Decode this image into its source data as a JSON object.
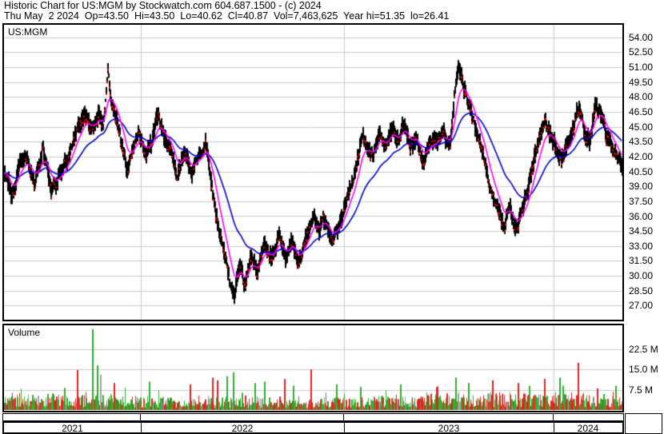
{
  "header": {
    "line1": "Historic Chart for US:MGM by Stockwatch.com 604.687.1500 - (c) 2024",
    "line2": "Thu May  2 2024  Op=43.50  Hi=43.50  Lo=40.62  Cl=40.87  Vol=7,463,625  Year hi=51.35  lo=26.41"
  },
  "price_panel": {
    "symbol_label": "US:MGM"
  },
  "volume_panel": {
    "label": "Volume"
  },
  "price_axis": {
    "labels": [
      "54.00",
      "52.50",
      "51.00",
      "49.50",
      "48.00",
      "46.50",
      "45.00",
      "43.50",
      "42.00",
      "40.50",
      "39.00",
      "37.50",
      "36.00",
      "34.50",
      "33.00",
      "31.50",
      "30.00",
      "28.50",
      "27.00"
    ]
  },
  "volume_axis": {
    "labels": [
      "22.5 M",
      "15.0 M",
      "7.5 M"
    ]
  },
  "time_axis": {
    "years": [
      {
        "label": "2021",
        "start": 0.0,
        "end": 0.2212
      },
      {
        "label": "2022",
        "start": 0.2212,
        "end": 0.5498
      },
      {
        "label": "2023",
        "start": 0.5498,
        "end": 0.8888
      },
      {
        "label": "2024",
        "start": 0.8888,
        "end": 1.0
      }
    ]
  },
  "colors": {
    "text": "#000000",
    "grid": "#c9c9c9",
    "border": "#000000",
    "candle": "#000000",
    "candle_tick": "#ff0000",
    "ma_fast": "#ff00ff",
    "ma_slow": "#0000cc",
    "vol_up": "#2fae2f",
    "vol_down": "#e32222",
    "vol_neutral": "#a0a0a0"
  },
  "chart_data": {
    "type": "candlestick+volume",
    "title": "Historic Chart for US:MGM",
    "symbol": "US:MGM",
    "price_gridlines": [
      54.0,
      52.5,
      51.0,
      49.5,
      48.0,
      46.5,
      45.0,
      43.5,
      42.0,
      40.5,
      39.0,
      37.5,
      36.0,
      34.5,
      33.0,
      31.5,
      30.0,
      28.5,
      27.0
    ],
    "price_ylim": [
      25.9,
      55.3
    ],
    "volume_gridlines_M": [
      22.5,
      15.0,
      7.5
    ],
    "volume_ylim_M": [
      0,
      31.4
    ],
    "last_bar": {
      "date": "Thu May 2 2024",
      "open": 43.5,
      "high": 43.5,
      "low": 40.62,
      "close": 40.87,
      "volume": 7463625
    },
    "year_hi": 51.35,
    "year_lo": 26.41,
    "overlays": [
      {
        "name": "ma-fast",
        "color": "#ff00ff"
      },
      {
        "name": "ma-slow",
        "color": "#0000cc"
      }
    ],
    "price_anchors": [
      [
        0.0,
        40.6
      ],
      [
        0.012,
        37.9
      ],
      [
        0.023,
        41.0
      ],
      [
        0.036,
        42.0
      ],
      [
        0.049,
        39.2
      ],
      [
        0.062,
        43.0
      ],
      [
        0.075,
        38.6
      ],
      [
        0.093,
        40.5
      ],
      [
        0.114,
        44.0
      ],
      [
        0.129,
        46.4
      ],
      [
        0.14,
        44.6
      ],
      [
        0.152,
        46.5
      ],
      [
        0.16,
        44.8
      ],
      [
        0.167,
        50.8
      ],
      [
        0.173,
        47.6
      ],
      [
        0.184,
        45.0
      ],
      [
        0.193,
        42.6
      ],
      [
        0.199,
        40.4
      ],
      [
        0.208,
        43.0
      ],
      [
        0.217,
        44.5
      ],
      [
        0.227,
        42.0
      ],
      [
        0.24,
        44.0
      ],
      [
        0.248,
        46.2
      ],
      [
        0.258,
        44.0
      ],
      [
        0.269,
        42.5
      ],
      [
        0.279,
        40.1
      ],
      [
        0.292,
        42.5
      ],
      [
        0.302,
        40.5
      ],
      [
        0.315,
        42.0
      ],
      [
        0.326,
        43.5
      ],
      [
        0.333,
        40.0
      ],
      [
        0.344,
        35.6
      ],
      [
        0.354,
        32.5
      ],
      [
        0.364,
        29.6
      ],
      [
        0.372,
        27.8
      ],
      [
        0.38,
        31.0
      ],
      [
        0.389,
        29.1
      ],
      [
        0.398,
        32.0
      ],
      [
        0.408,
        30.5
      ],
      [
        0.419,
        33.0
      ],
      [
        0.432,
        32.0
      ],
      [
        0.444,
        34.0
      ],
      [
        0.455,
        31.8
      ],
      [
        0.465,
        33.5
      ],
      [
        0.475,
        31.3
      ],
      [
        0.488,
        33.8
      ],
      [
        0.501,
        36.3
      ],
      [
        0.509,
        34.6
      ],
      [
        0.519,
        36.0
      ],
      [
        0.53,
        33.3
      ],
      [
        0.543,
        35.5
      ],
      [
        0.556,
        38.0
      ],
      [
        0.569,
        41.0
      ],
      [
        0.579,
        44.0
      ],
      [
        0.587,
        43.0
      ],
      [
        0.597,
        42.1
      ],
      [
        0.607,
        44.5
      ],
      [
        0.618,
        43.0
      ],
      [
        0.628,
        45.0
      ],
      [
        0.638,
        43.5
      ],
      [
        0.647,
        45.4
      ],
      [
        0.658,
        42.9
      ],
      [
        0.667,
        43.8
      ],
      [
        0.677,
        41.3
      ],
      [
        0.687,
        43.2
      ],
      [
        0.699,
        43.8
      ],
      [
        0.711,
        44.2
      ],
      [
        0.721,
        43.2
      ],
      [
        0.729,
        48.4
      ],
      [
        0.735,
        51.1
      ],
      [
        0.742,
        49.4
      ],
      [
        0.749,
        47.5
      ],
      [
        0.757,
        46.0
      ],
      [
        0.768,
        43.8
      ],
      [
        0.778,
        41.0
      ],
      [
        0.788,
        38.6
      ],
      [
        0.799,
        36.6
      ],
      [
        0.809,
        35.1
      ],
      [
        0.817,
        37.0
      ],
      [
        0.826,
        34.7
      ],
      [
        0.835,
        36.0
      ],
      [
        0.845,
        38.0
      ],
      [
        0.856,
        41.5
      ],
      [
        0.866,
        43.8
      ],
      [
        0.875,
        45.7
      ],
      [
        0.884,
        44.0
      ],
      [
        0.894,
        42.6
      ],
      [
        0.903,
        41.8
      ],
      [
        0.912,
        43.2
      ],
      [
        0.923,
        45.5
      ],
      [
        0.93,
        47.1
      ],
      [
        0.939,
        44.6
      ],
      [
        0.948,
        43.5
      ],
      [
        0.957,
        47.4
      ],
      [
        0.966,
        46.4
      ],
      [
        0.974,
        44.0
      ],
      [
        0.982,
        43.5
      ],
      [
        0.99,
        42.2
      ],
      [
        1.0,
        40.9
      ]
    ],
    "volume_spikes_M": [
      [
        0.118,
        14.8,
        "red"
      ],
      [
        0.143,
        30.0,
        "green"
      ],
      [
        0.15,
        16.5,
        "green"
      ],
      [
        0.156,
        13.0,
        "gray"
      ],
      [
        0.177,
        10.0,
        "red"
      ],
      [
        0.235,
        10.5,
        "green"
      ],
      [
        0.3,
        9.5,
        "red"
      ],
      [
        0.337,
        12.0,
        "red"
      ],
      [
        0.344,
        11.0,
        "red"
      ],
      [
        0.36,
        12.5,
        "green"
      ],
      [
        0.37,
        14.0,
        "green"
      ],
      [
        0.405,
        10.0,
        "green"
      ],
      [
        0.421,
        10.5,
        "green"
      ],
      [
        0.454,
        11.5,
        "red"
      ],
      [
        0.468,
        9.0,
        "green"
      ],
      [
        0.496,
        15.0,
        "red"
      ],
      [
        0.538,
        9.5,
        "green"
      ],
      [
        0.576,
        8.5,
        "green"
      ],
      [
        0.641,
        9.5,
        "green"
      ],
      [
        0.7,
        8.5,
        "red"
      ],
      [
        0.731,
        12.0,
        "green"
      ],
      [
        0.751,
        10.0,
        "green"
      ],
      [
        0.79,
        11.0,
        "red"
      ],
      [
        0.832,
        10.0,
        "red"
      ],
      [
        0.85,
        9.0,
        "green"
      ],
      [
        0.874,
        11.5,
        "red"
      ],
      [
        0.899,
        12.0,
        "green"
      ],
      [
        0.929,
        17.5,
        "red"
      ],
      [
        0.96,
        8.0,
        "red"
      ],
      [
        0.99,
        9.0,
        "green"
      ]
    ]
  }
}
